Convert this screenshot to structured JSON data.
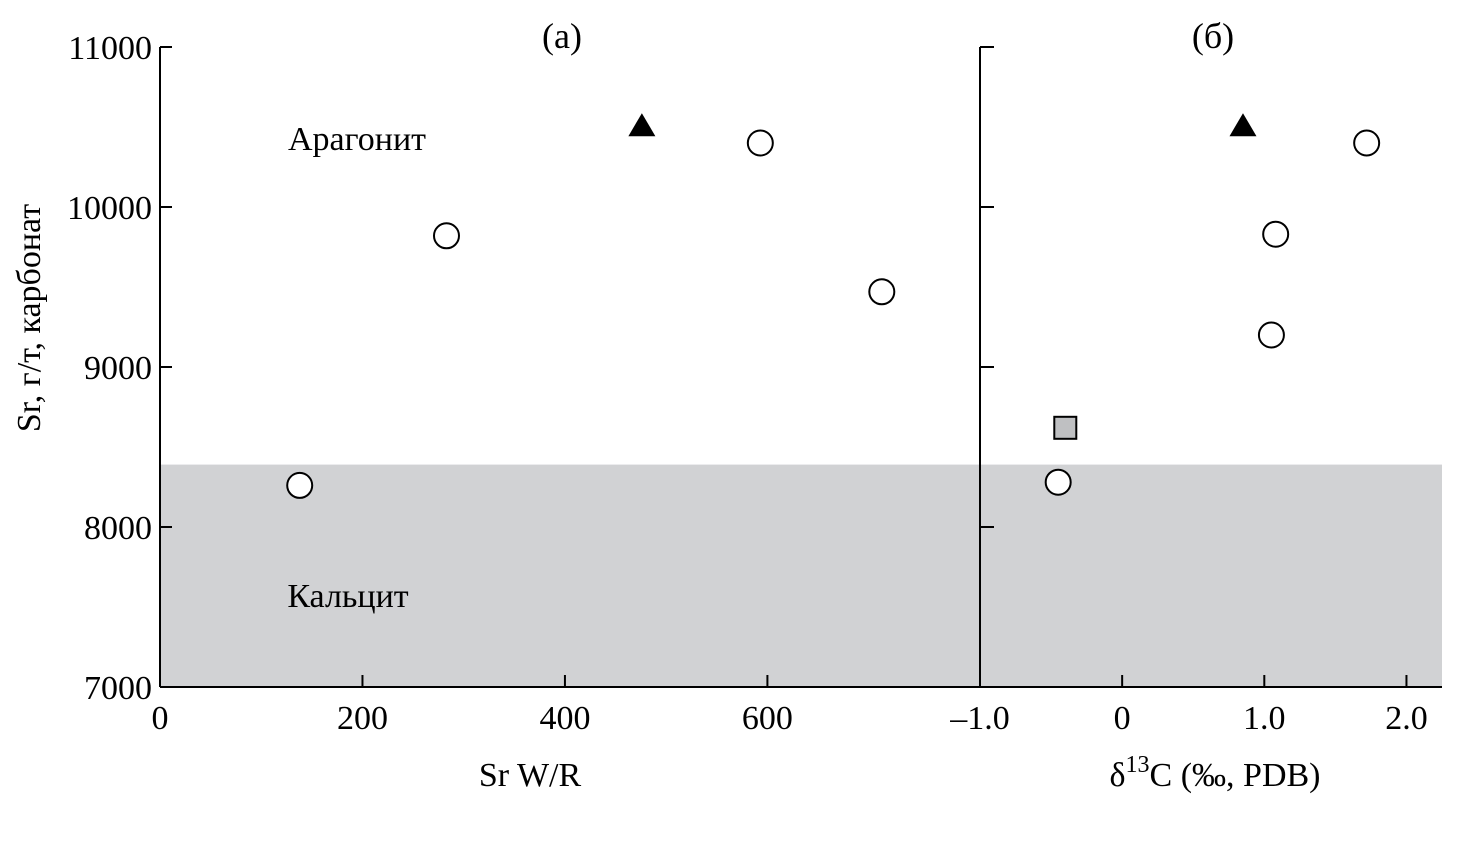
{
  "colors": {
    "calcite_region": "#d1d2d4",
    "axis": "#000000",
    "circle_fill": "#ffffff",
    "triangle_fill": "#000000",
    "square_fill": "#bfc0c2"
  },
  "chart_data": [
    {
      "type": "scatter",
      "panel_label": "(а)",
      "xlabel": "Sr W/R",
      "ylabel": "Sr, г/т, карбонат",
      "xlim": [
        0,
        810
      ],
      "ylim": [
        7000,
        11000
      ],
      "x_ticks": [
        "0",
        "200",
        "400",
        "600"
      ],
      "x_tick_values": [
        0,
        200,
        400,
        600
      ],
      "y_ticks": [
        "7000",
        "8000",
        "9000",
        "10000",
        "11000"
      ],
      "y_tick_values": [
        7000,
        8000,
        9000,
        10000,
        11000
      ],
      "regions": [
        {
          "label": "Арагонит",
          "y_from": 8390,
          "y_to": 11000,
          "shaded": false
        },
        {
          "label": "Кальцит",
          "y_from": 7000,
          "y_to": 8390,
          "shaded": true
        }
      ],
      "series": [
        {
          "marker": "circle",
          "points": [
            [
              138,
              8260
            ],
            [
              283,
              9820
            ],
            [
              593,
              10400
            ],
            [
              713,
              9470
            ]
          ]
        },
        {
          "marker": "triangle",
          "points": [
            [
              476,
              10500
            ]
          ]
        }
      ]
    },
    {
      "type": "scatter",
      "panel_label": "(б)",
      "xlabel": "δ13C (‰, PDB)",
      "xlabel_parts": {
        "pre": "δ",
        "sup": "13",
        "post": "C (‰, PDB)"
      },
      "xlim": [
        -1.0,
        2.25
      ],
      "ylim": [
        7000,
        11000
      ],
      "x_ticks": [
        "–1.0",
        "0",
        "1.0",
        "2.0"
      ],
      "x_tick_values": [
        -1.0,
        0,
        1.0,
        2.0
      ],
      "y_tick_values": [
        7000,
        8000,
        9000,
        10000,
        11000
      ],
      "series": [
        {
          "marker": "circle",
          "points": [
            [
              -0.45,
              8280
            ],
            [
              1.05,
              9200
            ],
            [
              1.08,
              9830
            ],
            [
              1.72,
              10400
            ]
          ]
        },
        {
          "marker": "triangle",
          "points": [
            [
              0.85,
              10500
            ]
          ]
        },
        {
          "marker": "square",
          "points": [
            [
              -0.4,
              8620
            ]
          ]
        }
      ]
    }
  ]
}
